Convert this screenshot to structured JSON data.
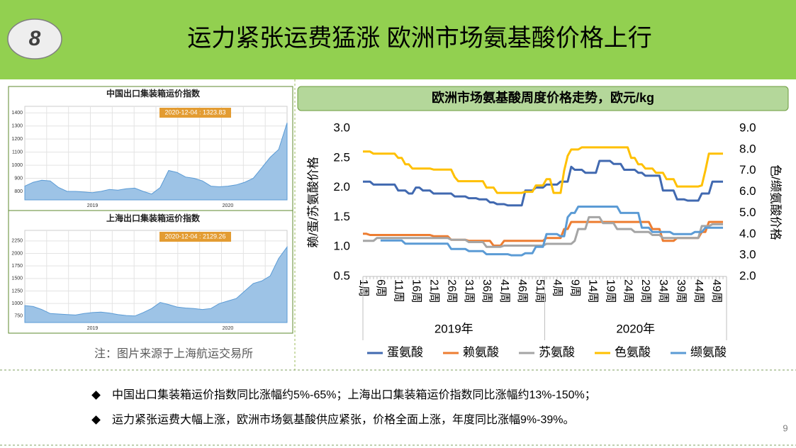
{
  "header": {
    "badge": "8",
    "title": "运力紧张运费猛涨  欧洲市场氨基酸价格上行"
  },
  "chart_data": [
    {
      "type": "area",
      "title": "中国出口集装箱运价指数",
      "annotation": "2020-12-04 : 1323.83",
      "categories": [
        null,
        null,
        null,
        null,
        null,
        null,
        null,
        null,
        "2019",
        null,
        null,
        null,
        null,
        null,
        null,
        null,
        null,
        null,
        null,
        null,
        null,
        null,
        null,
        null,
        "2020",
        null,
        null,
        null,
        null,
        null,
        null,
        null
      ],
      "values": [
        840,
        870,
        885,
        880,
        830,
        800,
        800,
        795,
        790,
        800,
        815,
        810,
        820,
        825,
        800,
        780,
        830,
        960,
        945,
        910,
        900,
        880,
        840,
        835,
        840,
        850,
        870,
        900,
        980,
        1060,
        1120,
        1324
      ],
      "color": "#9dc3e6",
      "ylim": [
        735,
        1450
      ],
      "yticks": [
        800,
        900,
        1000,
        1100,
        1200,
        1300,
        1400
      ],
      "grid": true
    },
    {
      "type": "area",
      "title": "上海出口集装箱运价指数",
      "annotation": "2020-12-04 : 2129.26",
      "categories": [
        null,
        null,
        null,
        null,
        null,
        null,
        null,
        null,
        "2019",
        null,
        null,
        null,
        null,
        null,
        null,
        null,
        null,
        null,
        null,
        null,
        null,
        null,
        null,
        null,
        "2020",
        null,
        null,
        null,
        null,
        null,
        null,
        null
      ],
      "values": [
        960,
        940,
        880,
        800,
        790,
        780,
        770,
        800,
        820,
        830,
        810,
        780,
        760,
        750,
        820,
        900,
        1020,
        980,
        930,
        910,
        900,
        880,
        900,
        1000,
        1050,
        1100,
        1250,
        1400,
        1450,
        1550,
        1900,
        2129
      ],
      "color": "#9dc3e6",
      "ylim": [
        620,
        2460
      ],
      "yticks": [
        750,
        1000,
        1250,
        1500,
        1750,
        2000,
        2250
      ],
      "grid": true
    },
    {
      "type": "line",
      "title": "欧洲市场氨基酸周度价格走势，欧元/kg",
      "y_label": "赖/蛋/苏氨酸价格",
      "y2_label": "色/缬氨酸价格",
      "categories": [
        "1周",
        null,
        null,
        null,
        null,
        "6周",
        null,
        null,
        null,
        null,
        "11周",
        null,
        null,
        null,
        null,
        "16周",
        null,
        null,
        null,
        null,
        "21周",
        null,
        null,
        null,
        null,
        "26周",
        null,
        null,
        null,
        null,
        "31周",
        null,
        null,
        null,
        null,
        "36周",
        null,
        null,
        null,
        null,
        "41周",
        null,
        null,
        null,
        null,
        "46周",
        null,
        null,
        null,
        null,
        "51周",
        null,
        null,
        null,
        null,
        "4周",
        null,
        null,
        null,
        null,
        "9周",
        null,
        null,
        null,
        null,
        "14周",
        null,
        null,
        null,
        null,
        "19周",
        null,
        null,
        null,
        null,
        "24周",
        null,
        null,
        null,
        null,
        "29周",
        null,
        null,
        null,
        null,
        "34周",
        null,
        null,
        null,
        null,
        "39周",
        null,
        null,
        null,
        null,
        "44周",
        null,
        null,
        null,
        null,
        "49周",
        null,
        null
      ],
      "category_groups": [
        "2019年",
        null,
        null,
        null,
        null,
        null,
        null,
        null,
        null,
        null,
        null,
        null,
        null,
        null,
        null,
        null,
        null,
        null,
        null,
        null,
        null,
        null,
        null,
        null,
        null,
        null,
        null,
        null,
        null,
        null,
        null,
        null,
        null,
        null,
        null,
        null,
        null,
        null,
        null,
        null,
        null,
        null,
        null,
        null,
        null,
        null,
        null,
        null,
        null,
        null,
        null,
        null,
        "2020年",
        null,
        null,
        null,
        null,
        null,
        null,
        null,
        null,
        null,
        null,
        null,
        null,
        null,
        null,
        null,
        null,
        null,
        null,
        null,
        null,
        null,
        null,
        null,
        null,
        null,
        null,
        null,
        null,
        null,
        null,
        null,
        null,
        null,
        null,
        null,
        null,
        null,
        null,
        null,
        null,
        null,
        null,
        null,
        null,
        null,
        null,
        null,
        null,
        null,
        null
      ],
      "ylim": [
        0.5,
        3.0
      ],
      "yticks": [
        {
          "value": 3,
          "label": "3.0"
        },
        2.5,
        {
          "value": 2,
          "label": "2.0"
        },
        1.5,
        {
          "value": 1,
          "label": "1.0"
        },
        0.5
      ],
      "y2lim": [
        2,
        9
      ],
      "y2ticks": [
        {
          "value": 9,
          "label": "9.0"
        },
        {
          "value": 8,
          "label": "8.0"
        },
        {
          "value": 7,
          "label": "7.0"
        },
        {
          "value": 6,
          "label": "6.0"
        },
        {
          "value": 5,
          "label": "5.0"
        },
        {
          "value": 4,
          "label": "4.0"
        },
        {
          "value": 3,
          "label": "3.0"
        },
        {
          "value": 2,
          "label": "2.0"
        }
      ],
      "legend": "bottom",
      "series": [
        {
          "name": "蛋氨酸",
          "color": "#4169b0",
          "axis": "y",
          "values": [
            2.1,
            2.1,
            2.1,
            2.05,
            2.05,
            2.05,
            2.05,
            2.05,
            2.05,
            2.05,
            1.95,
            1.95,
            1.95,
            1.9,
            1.9,
            2.0,
            2.0,
            1.95,
            1.95,
            1.95,
            1.9,
            1.9,
            1.9,
            1.9,
            1.9,
            1.9,
            1.85,
            1.85,
            1.85,
            1.85,
            1.82,
            1.82,
            1.82,
            1.8,
            1.8,
            1.8,
            1.75,
            1.75,
            1.72,
            1.72,
            1.72,
            1.7,
            1.7,
            1.7,
            1.7,
            1.7,
            1.95,
            1.95,
            1.95,
            2.0,
            2.0,
            2.0,
            2.05,
            2.05,
            2.05,
            2.05,
            2.1,
            2.1,
            2.1,
            2.35,
            2.3,
            2.3,
            2.3,
            2.25,
            2.25,
            2.25,
            2.25,
            2.45,
            2.45,
            2.45,
            2.45,
            2.4,
            2.4,
            2.4,
            2.3,
            2.3,
            2.3,
            2.3,
            2.25,
            2.25,
            2.2,
            2.2,
            2.2,
            2.2,
            2.2,
            1.95,
            1.95,
            1.95,
            1.95,
            1.8,
            1.8,
            1.8,
            1.78,
            1.78,
            1.78,
            1.78,
            1.9,
            1.9,
            1.9,
            2.1,
            2.1,
            2.1,
            2.1
          ]
        },
        {
          "name": "赖氨酸",
          "color": "#ed7d31",
          "axis": "y",
          "values": [
            1.22,
            1.22,
            1.2,
            1.2,
            1.2,
            1.2,
            1.2,
            1.2,
            1.2,
            1.2,
            1.2,
            1.2,
            1.2,
            1.2,
            1.2,
            1.2,
            1.2,
            1.2,
            1.2,
            1.2,
            1.18,
            1.18,
            1.18,
            1.18,
            1.18,
            1.12,
            1.12,
            1.12,
            1.12,
            1.12,
            1.1,
            1.1,
            1.1,
            1.1,
            1.1,
            1.1,
            1.1,
            1.02,
            1.02,
            1.02,
            1.1,
            1.1,
            1.1,
            1.1,
            1.1,
            1.1,
            1.1,
            1.1,
            1.1,
            1.1,
            1.1,
            1.1,
            1.15,
            1.15,
            1.15,
            1.15,
            1.15,
            1.3,
            1.3,
            1.42,
            1.42,
            1.42,
            1.42,
            1.42,
            1.42,
            1.42,
            1.42,
            1.42,
            1.42,
            1.42,
            1.42,
            1.42,
            1.42,
            1.42,
            1.42,
            1.42,
            1.42,
            1.42,
            1.42,
            1.42,
            1.42,
            1.42,
            1.3,
            1.3,
            1.3,
            1.1,
            1.1,
            1.1,
            1.1,
            1.15,
            1.15,
            1.15,
            1.15,
            1.15,
            1.15,
            1.15,
            1.25,
            1.25,
            1.42,
            1.42,
            1.42,
            1.42,
            1.42
          ]
        },
        {
          "name": "苏氨酸",
          "color": "#a5a5a5",
          "axis": "y",
          "values": [
            1.1,
            1.1,
            1.1,
            1.1,
            1.15,
            1.15,
            1.15,
            1.15,
            1.15,
            1.15,
            1.15,
            1.15,
            1.15,
            1.15,
            1.15,
            1.15,
            1.15,
            1.15,
            1.15,
            1.15,
            1.15,
            1.15,
            1.15,
            1.15,
            1.15,
            1.12,
            1.12,
            1.12,
            1.12,
            1.12,
            1.08,
            1.08,
            1.08,
            1.08,
            1.08,
            1.0,
            1.0,
            1.0,
            1.0,
            1.0,
            1.02,
            1.02,
            1.02,
            1.02,
            1.02,
            1.02,
            1.02,
            1.02,
            1.02,
            1.02,
            1.02,
            1.02,
            1.05,
            1.05,
            1.05,
            1.05,
            1.05,
            1.05,
            1.05,
            1.05,
            1.1,
            1.3,
            1.3,
            1.3,
            1.5,
            1.5,
            1.5,
            1.5,
            1.4,
            1.4,
            1.4,
            1.4,
            1.3,
            1.3,
            1.3,
            1.3,
            1.3,
            1.25,
            1.25,
            1.25,
            1.25,
            1.25,
            1.2,
            1.2,
            1.2,
            1.15,
            1.15,
            1.15,
            1.15,
            1.15,
            1.15,
            1.15,
            1.15,
            1.15,
            1.15,
            1.15,
            1.35,
            1.35,
            1.35,
            1.38,
            1.38,
            1.38,
            1.38
          ]
        },
        {
          "name": "色氨酸",
          "color": "#ffc000",
          "axis": "y2",
          "values": [
            7.9,
            7.9,
            7.9,
            7.8,
            7.8,
            7.8,
            7.8,
            7.8,
            7.8,
            7.8,
            7.6,
            7.6,
            7.3,
            7.3,
            7.1,
            7.1,
            7.1,
            7.1,
            7.1,
            7.1,
            7.05,
            7.05,
            7.05,
            7.05,
            7.05,
            7.05,
            6.7,
            6.5,
            6.5,
            6.5,
            6.5,
            6.5,
            6.5,
            6.5,
            6.5,
            6.2,
            6.2,
            6.2,
            5.95,
            5.95,
            5.95,
            5.95,
            5.95,
            5.95,
            5.95,
            5.95,
            6.0,
            6.0,
            6.0,
            6.3,
            6.3,
            6.3,
            6.6,
            6.6,
            5.95,
            5.95,
            5.95,
            7.0,
            7.7,
            8.0,
            8.0,
            8.0,
            8.1,
            8.1,
            8.1,
            8.1,
            8.1,
            8.1,
            8.1,
            8.1,
            8.1,
            8.1,
            8.1,
            8.1,
            8.1,
            8.1,
            7.6,
            7.6,
            7.3,
            7.3,
            7.1,
            7.1,
            7.1,
            6.9,
            6.9,
            6.9,
            6.6,
            6.6,
            6.6,
            6.25,
            6.25,
            6.25,
            6.25,
            6.25,
            6.25,
            6.25,
            6.3,
            7.0,
            7.8,
            7.8,
            7.8,
            7.8,
            7.8
          ]
        },
        {
          "name": "缬氨酸",
          "color": "#5b9bd5",
          "axis": "y2",
          "values": [
            null,
            null,
            null,
            null,
            null,
            3.7,
            3.7,
            3.7,
            3.7,
            3.7,
            3.7,
            3.7,
            3.55,
            3.55,
            3.55,
            3.55,
            3.55,
            3.55,
            3.55,
            3.55,
            3.55,
            3.55,
            3.55,
            3.55,
            3.55,
            3.3,
            3.3,
            3.3,
            3.3,
            3.3,
            3.2,
            3.2,
            3.2,
            3.2,
            3.2,
            3.05,
            3.05,
            3.05,
            3.05,
            3.05,
            3.05,
            3.05,
            3.0,
            3.0,
            3.0,
            3.0,
            3.1,
            3.1,
            3.1,
            3.4,
            3.4,
            3.4,
            4.0,
            4.0,
            4.0,
            4.0,
            3.9,
            3.9,
            4.8,
            5.0,
            5.0,
            5.3,
            5.3,
            5.3,
            5.3,
            5.3,
            5.3,
            5.3,
            5.3,
            5.3,
            5.3,
            5.3,
            5.3,
            5.0,
            5.0,
            5.0,
            5.0,
            5.0,
            5.0,
            4.3,
            4.3,
            4.3,
            4.1,
            4.1,
            4.1,
            4.1,
            4.1,
            4.1,
            4.0,
            4.0,
            4.0,
            4.0,
            4.0,
            4.0,
            4.1,
            4.1,
            4.1,
            4.3,
            4.3,
            4.3,
            4.3,
            4.3,
            4.3
          ]
        }
      ]
    }
  ],
  "note": "注：图片来源于上海航运交易所",
  "bullets": [
    "中国出口集装箱运价指数同比涨幅约5%-65%；上海出口集装箱运价指数同比涨幅约13%-150%；",
    "运力紧张运费大幅上涨，欧洲市场氨基酸供应紧张，价格全面上涨，年度同比涨幅9%-39%。"
  ],
  "page_number": "9"
}
